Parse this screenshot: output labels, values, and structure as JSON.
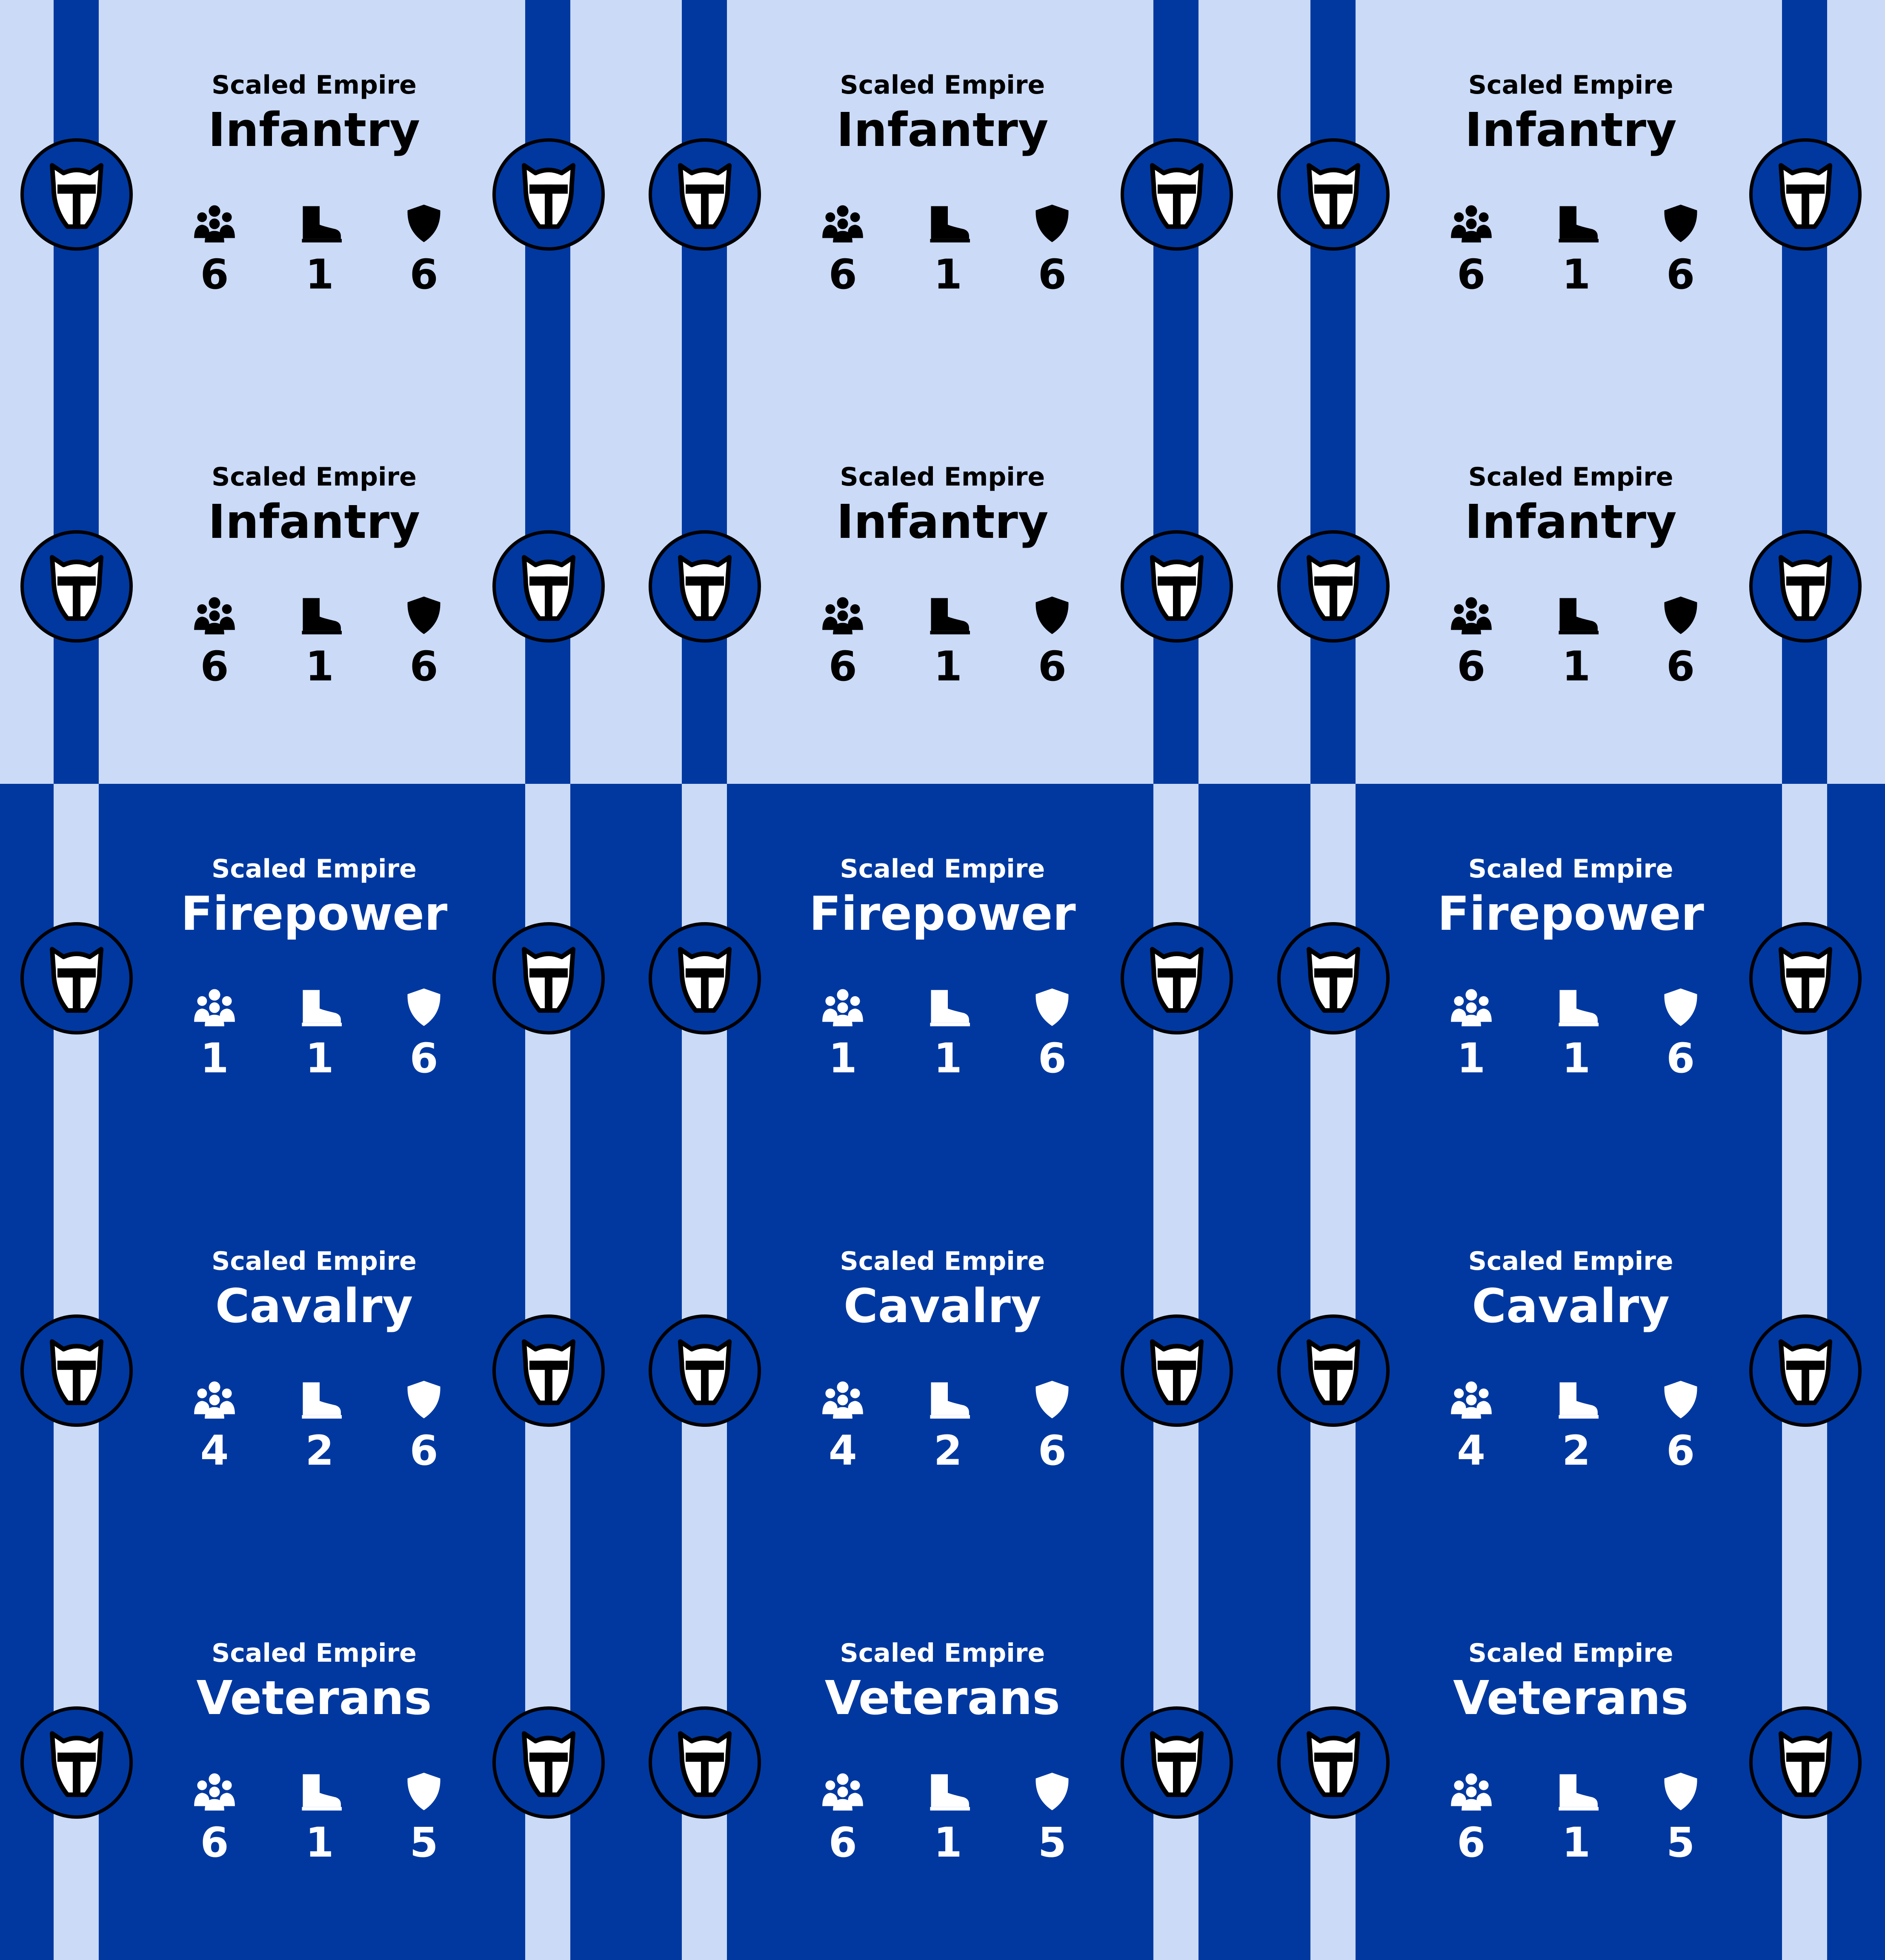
{
  "colors": {
    "light": "#cadaf7",
    "dark": "#0038a0",
    "outline": "#000000",
    "helm_fill": "#ffffff"
  },
  "icons": {
    "medal": "horned-helmet-icon",
    "stats": [
      "troops-icon",
      "boot-icon",
      "shield-icon"
    ]
  },
  "cards": [
    {
      "faction": "Scaled Empire",
      "unit": "Infantry",
      "theme": "light",
      "stats": [
        "6",
        "1",
        "6"
      ]
    },
    {
      "faction": "Scaled Empire",
      "unit": "Infantry",
      "theme": "light",
      "stats": [
        "6",
        "1",
        "6"
      ]
    },
    {
      "faction": "Scaled Empire",
      "unit": "Infantry",
      "theme": "light",
      "stats": [
        "6",
        "1",
        "6"
      ]
    },
    {
      "faction": "Scaled Empire",
      "unit": "Infantry",
      "theme": "light",
      "stats": [
        "6",
        "1",
        "6"
      ]
    },
    {
      "faction": "Scaled Empire",
      "unit": "Infantry",
      "theme": "light",
      "stats": [
        "6",
        "1",
        "6"
      ]
    },
    {
      "faction": "Scaled Empire",
      "unit": "Infantry",
      "theme": "light",
      "stats": [
        "6",
        "1",
        "6"
      ]
    },
    {
      "faction": "Scaled Empire",
      "unit": "Firepower",
      "theme": "dark",
      "stats": [
        "1",
        "1",
        "6"
      ]
    },
    {
      "faction": "Scaled Empire",
      "unit": "Firepower",
      "theme": "dark",
      "stats": [
        "1",
        "1",
        "6"
      ]
    },
    {
      "faction": "Scaled Empire",
      "unit": "Firepower",
      "theme": "dark",
      "stats": [
        "1",
        "1",
        "6"
      ]
    },
    {
      "faction": "Scaled Empire",
      "unit": "Cavalry",
      "theme": "dark",
      "stats": [
        "4",
        "2",
        "6"
      ]
    },
    {
      "faction": "Scaled Empire",
      "unit": "Cavalry",
      "theme": "dark",
      "stats": [
        "4",
        "2",
        "6"
      ]
    },
    {
      "faction": "Scaled Empire",
      "unit": "Cavalry",
      "theme": "dark",
      "stats": [
        "4",
        "2",
        "6"
      ]
    },
    {
      "faction": "Scaled Empire",
      "unit": "Veterans",
      "theme": "dark",
      "stats": [
        "6",
        "1",
        "5"
      ]
    },
    {
      "faction": "Scaled Empire",
      "unit": "Veterans",
      "theme": "dark",
      "stats": [
        "6",
        "1",
        "5"
      ]
    },
    {
      "faction": "Scaled Empire",
      "unit": "Veterans",
      "theme": "dark",
      "stats": [
        "6",
        "1",
        "5"
      ]
    }
  ]
}
